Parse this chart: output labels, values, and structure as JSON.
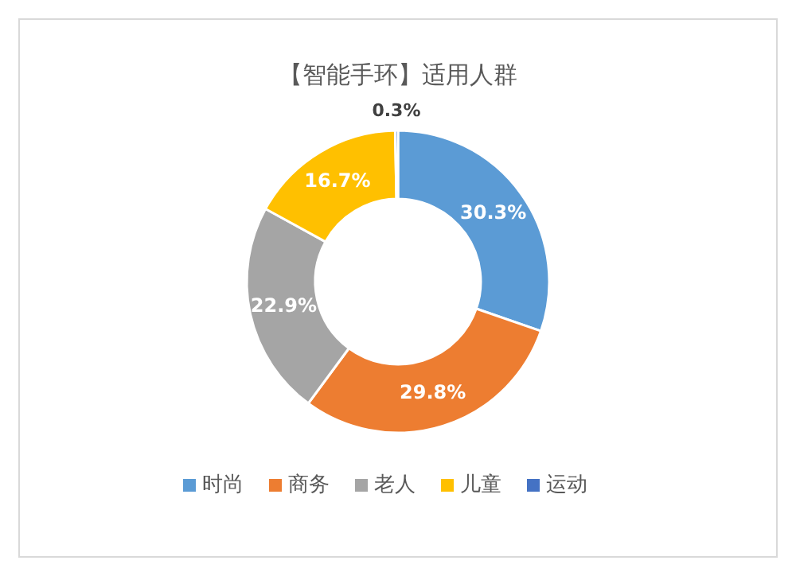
{
  "chart_data": {
    "type": "donut",
    "title": "【智能手环】适用人群",
    "categories": [
      "时尚",
      "商务",
      "老人",
      "儿童",
      "运动"
    ],
    "values": [
      30.3,
      29.8,
      22.9,
      16.7,
      0.3
    ],
    "colors": [
      "#5b9bd5",
      "#ed7d31",
      "#a5a5a5",
      "#ffc000",
      "#4472c4"
    ],
    "value_labels": [
      "30.3%",
      "29.8%",
      "22.9%",
      "16.7%",
      "0.3%"
    ],
    "legend": "bottom"
  }
}
